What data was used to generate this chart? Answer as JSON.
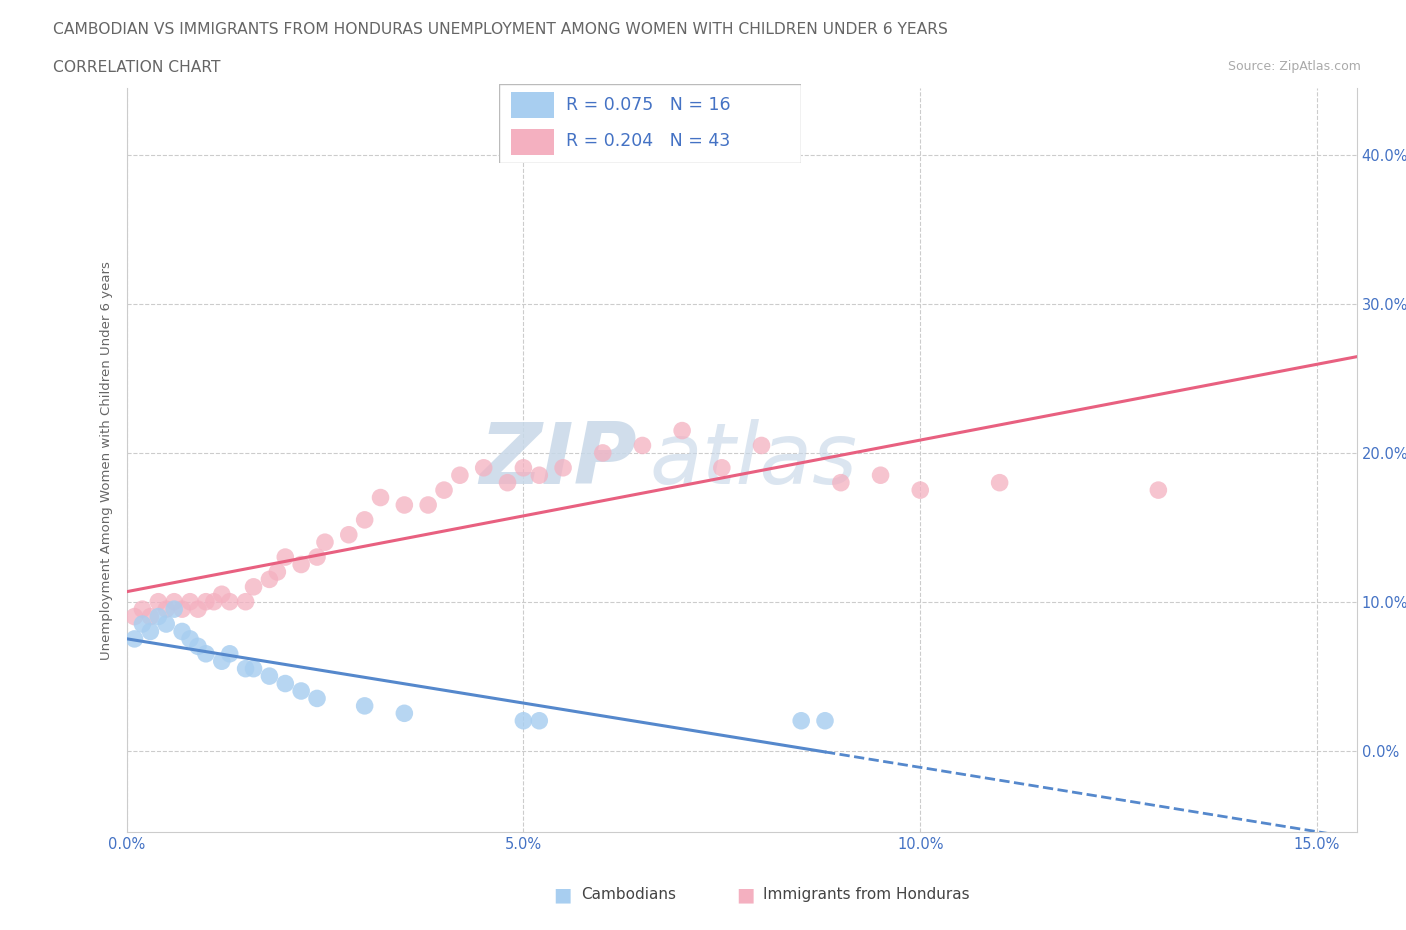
{
  "title_line1": "CAMBODIAN VS IMMIGRANTS FROM HONDURAS UNEMPLOYMENT AMONG WOMEN WITH CHILDREN UNDER 6 YEARS",
  "title_line2": "CORRELATION CHART",
  "source": "Source: ZipAtlas.com",
  "xlim": [
    0.0,
    0.155
  ],
  "ylim": [
    -0.055,
    0.445
  ],
  "ylabel": "Unemployment Among Women with Children Under 6 years",
  "color_cambodian": "#a8cef0",
  "color_honduras": "#f4b0c0",
  "color_line_cambodian": "#5588cc",
  "color_line_honduras": "#e86080",
  "watermark_zip": "#c8d8e8",
  "watermark_atlas": "#c8d8e8",
  "cambodian_x": [
    0.001,
    0.002,
    0.003,
    0.004,
    0.005,
    0.006,
    0.007,
    0.008,
    0.009,
    0.01,
    0.012,
    0.013,
    0.015,
    0.016,
    0.018,
    0.02,
    0.022,
    0.024,
    0.03,
    0.035,
    0.05,
    0.052,
    0.085,
    0.088
  ],
  "cambodian_y": [
    0.075,
    0.085,
    0.08,
    0.09,
    0.085,
    0.095,
    0.08,
    0.075,
    0.07,
    0.065,
    0.06,
    0.065,
    0.055,
    0.055,
    0.05,
    0.045,
    0.04,
    0.035,
    0.03,
    0.025,
    0.02,
    0.02,
    0.02,
    0.02
  ],
  "honduras_x": [
    0.001,
    0.002,
    0.003,
    0.004,
    0.005,
    0.006,
    0.007,
    0.008,
    0.009,
    0.01,
    0.011,
    0.012,
    0.013,
    0.015,
    0.016,
    0.018,
    0.019,
    0.02,
    0.022,
    0.024,
    0.025,
    0.028,
    0.03,
    0.032,
    0.035,
    0.038,
    0.04,
    0.042,
    0.045,
    0.048,
    0.05,
    0.052,
    0.055,
    0.06,
    0.065,
    0.07,
    0.075,
    0.08,
    0.09,
    0.095,
    0.1,
    0.11,
    0.13
  ],
  "honduras_y": [
    0.09,
    0.095,
    0.09,
    0.1,
    0.095,
    0.1,
    0.095,
    0.1,
    0.095,
    0.1,
    0.1,
    0.105,
    0.1,
    0.1,
    0.11,
    0.115,
    0.12,
    0.13,
    0.125,
    0.13,
    0.14,
    0.145,
    0.155,
    0.17,
    0.165,
    0.165,
    0.175,
    0.185,
    0.19,
    0.18,
    0.19,
    0.185,
    0.19,
    0.2,
    0.205,
    0.215,
    0.19,
    0.205,
    0.18,
    0.185,
    0.175,
    0.18,
    0.175
  ],
  "ytick_vals": [
    0.0,
    0.1,
    0.2,
    0.3,
    0.4
  ],
  "xtick_vals": [
    0.0,
    0.05,
    0.1,
    0.15
  ],
  "tick_color": "#4472c4",
  "tick_fontsize": 10.5,
  "label_color": "#666666",
  "grid_color": "#cccccc",
  "spine_color": "#cccccc"
}
